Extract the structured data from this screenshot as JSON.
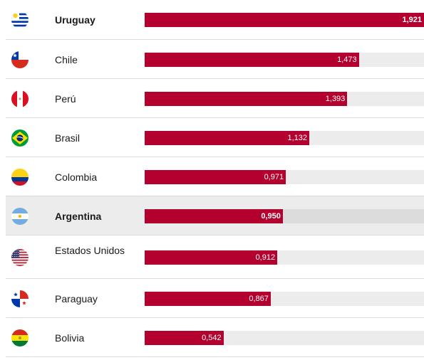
{
  "chart_data": {
    "type": "bar",
    "orientation": "horizontal",
    "bar_color": "#b3002f",
    "track_color": "#ececec",
    "xlim": [
      0,
      1.921
    ],
    "rows": [
      {
        "country": "Uruguay",
        "value": 1.921,
        "label": "1,921",
        "bold": true,
        "highlight": false,
        "flag": "uruguay-flag-icon"
      },
      {
        "country": "Chile",
        "value": 1.473,
        "label": "1,473",
        "bold": false,
        "highlight": false,
        "flag": "chile-flag-icon"
      },
      {
        "country": "Perú",
        "value": 1.393,
        "label": "1,393",
        "bold": false,
        "highlight": false,
        "flag": "peru-flag-icon"
      },
      {
        "country": "Brasil",
        "value": 1.132,
        "label": "1,132",
        "bold": false,
        "highlight": false,
        "flag": "brazil-flag-icon"
      },
      {
        "country": "Colombia",
        "value": 0.971,
        "label": "0,971",
        "bold": false,
        "highlight": false,
        "flag": "colombia-flag-icon"
      },
      {
        "country": "Argentina",
        "value": 0.95,
        "label": "0,950",
        "bold": true,
        "highlight": true,
        "flag": "argentina-flag-icon"
      },
      {
        "country": "Estados Unidos",
        "value": 0.912,
        "label": "0,912",
        "bold": false,
        "highlight": false,
        "flag": "usa-flag-icon"
      },
      {
        "country": "Paraguay",
        "value": 0.867,
        "label": "0,867",
        "bold": false,
        "highlight": false,
        "flag": "paraguay-flag-icon"
      },
      {
        "country": "Bolivia",
        "value": 0.542,
        "label": "0,542",
        "bold": false,
        "highlight": false,
        "flag": "bolivia-flag-icon"
      }
    ]
  }
}
